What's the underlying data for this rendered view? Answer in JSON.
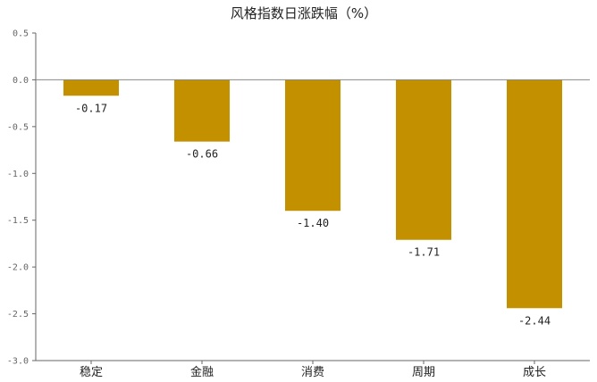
{
  "chart_data": {
    "type": "bar",
    "title": "风格指数日涨跌幅（%）",
    "xlabel": "",
    "ylabel": "",
    "categories": [
      "稳定",
      "金融",
      "消费",
      "周期",
      "成长"
    ],
    "values": [
      -0.17,
      -0.66,
      -1.4,
      -1.71,
      -2.44
    ],
    "value_labels": [
      "-0.17",
      "-0.66",
      "-1.40",
      "-1.71",
      "-2.44"
    ],
    "ylim": [
      -3.0,
      0.5
    ],
    "yticks": [
      0.5,
      0.0,
      -0.5,
      -1.0,
      -1.5,
      -2.0,
      -2.5,
      -3.0
    ],
    "ytick_labels": [
      "0.5",
      "0.0",
      "-0.5",
      "-1.0",
      "-1.5",
      "-2.0",
      "-2.5",
      "-3.0"
    ],
    "grid": false,
    "legend": "none",
    "colors": {
      "bar": "#C39000",
      "axis": "#666666",
      "zero_line": "#888888"
    }
  }
}
